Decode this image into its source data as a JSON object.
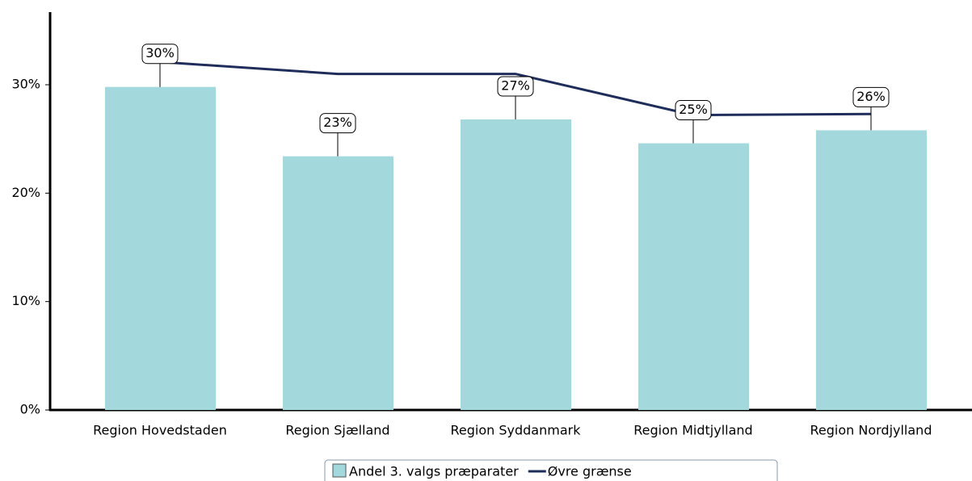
{
  "chart_data": {
    "type": "bar_line",
    "categories": [
      "Region Hovedstaden",
      "Region Sjælland",
      "Region Syddanmark",
      "Region Midtjylland",
      "Region Nordjylland"
    ],
    "series": [
      {
        "name": "Andel 3. valgs præparater",
        "type": "bar",
        "color": "#a3d9dd",
        "values": [
          29.8,
          23.4,
          26.8,
          24.6,
          25.8
        ],
        "value_labels": [
          "30%",
          "23%",
          "27%",
          "25%",
          "26%"
        ]
      },
      {
        "name": "Øvre grænse",
        "type": "line",
        "color": "#1f2d5a",
        "values": [
          32.1,
          31.0,
          31.0,
          27.2,
          27.3
        ]
      }
    ],
    "ylim": [
      0,
      36.7
    ],
    "yticks": [
      {
        "value": 0,
        "label": "0%"
      },
      {
        "value": 10,
        "label": "10%"
      },
      {
        "value": 20,
        "label": "20%"
      },
      {
        "value": 30,
        "label": "30%"
      }
    ]
  }
}
